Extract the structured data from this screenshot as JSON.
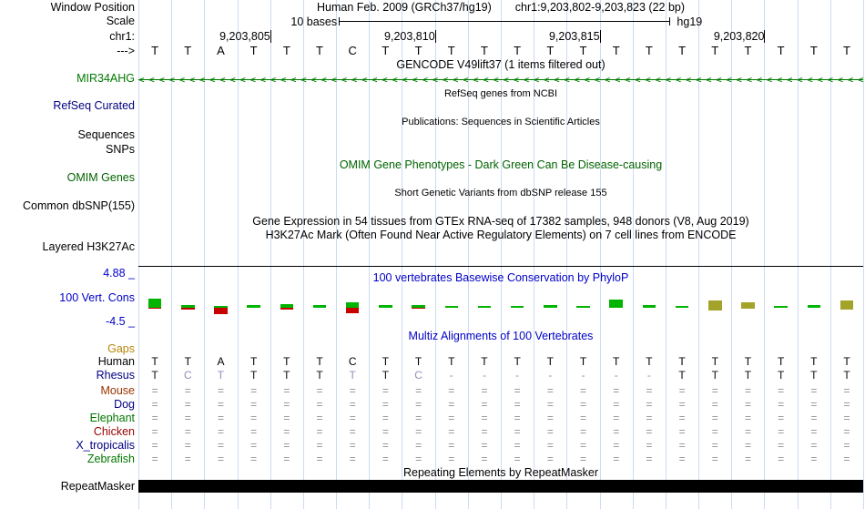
{
  "colors": {
    "guideline": "#ccdcf2",
    "gene_green": "#007700",
    "title_blue": "#0000c8",
    "navy": "#000082",
    "omim_green": "#006400",
    "gaps_orange": "#b8860b",
    "mouse_brown": "#993300",
    "chicken_red": "#960000",
    "dim_base": "#9090bb",
    "equals_gray": "#8f8f8f",
    "cons_green": "#00b400",
    "cons_red": "#c80000",
    "cons_olive": "#a3a329",
    "repeat_black": "#000000"
  },
  "header": {
    "left_label": "Window Position",
    "assembly": "Human Feb. 2009 (GRCh37/hg19)",
    "position": "chr1:9,203,802-9,203,823 (22 bp)"
  },
  "scale": {
    "left_label": "Scale",
    "bases_label": "10 bases",
    "genome": "hg19"
  },
  "ruler": {
    "left_label": "chr1:",
    "ticks": [
      {
        "label": "9,203,805",
        "pct": 18.18
      },
      {
        "label": "9,203,810",
        "pct": 40.91
      },
      {
        "label": "9,203,815",
        "pct": 63.64
      },
      {
        "label": "9,203,820",
        "pct": 86.36
      }
    ]
  },
  "sequence": {
    "left_label": "--->",
    "bases": [
      "T",
      "T",
      "A",
      "T",
      "T",
      "T",
      "C",
      "T",
      "T",
      "T",
      "T",
      "T",
      "T",
      "T",
      "T",
      "T",
      "T",
      "T",
      "T",
      "T",
      "T",
      "T"
    ]
  },
  "tracks": {
    "gencode": {
      "title": "GENCODE V49lift37 (1 items filtered out)",
      "gene_label": "MIR34AHG",
      "strand_arrow": "<"
    },
    "refseq": {
      "title": "RefSeq genes from NCBI",
      "left_label": "RefSeq Curated"
    },
    "publications": {
      "title": "Publications: Sequences in Scientific Articles",
      "left_label": "Sequences"
    },
    "snps": {
      "left_label": "SNPs"
    },
    "omim": {
      "title": "OMIM Gene Phenotypes - Dark Green Can Be Disease-causing",
      "left_label": "OMIM Genes"
    },
    "dbsnp": {
      "title": "Short Genetic Variants from dbSNP release 155",
      "left_label": "Common dbSNP(155)"
    },
    "gtex": {
      "title": "Gene Expression in 54 tissues from GTEx RNA-seq of 17382 samples, 948 donors (V8, Aug 2019)"
    },
    "h3k27ac": {
      "title": "H3K27Ac Mark (Often Found Near Active Regulatory Elements) on 7 cell lines from ENCODE",
      "left_label": "Layered H3K27Ac"
    },
    "conservation": {
      "title": "100 vertebrates Basewise Conservation by PhyloP",
      "left_label": "100 Vert. Cons",
      "axis_max": "4.88 _",
      "axis_min": "-4.5 _",
      "bars": [
        {
          "u": 10,
          "d": 1,
          "c": "g"
        },
        {
          "u": 3,
          "d": 2,
          "c": "g"
        },
        {
          "u": 2,
          "d": 7,
          "c": "g"
        },
        {
          "u": 3,
          "d": 0,
          "c": "g"
        },
        {
          "u": 4,
          "d": 2,
          "c": "g"
        },
        {
          "u": 3,
          "d": 0,
          "c": "g"
        },
        {
          "u": 6,
          "d": 6,
          "c": "g"
        },
        {
          "u": 3,
          "d": 0,
          "c": "g"
        },
        {
          "u": 3,
          "d": 1,
          "c": "g"
        },
        {
          "u": 2,
          "d": 0,
          "c": "g"
        },
        {
          "u": 2,
          "d": 0,
          "c": "g"
        },
        {
          "u": 2,
          "d": 0,
          "c": "g"
        },
        {
          "u": 3,
          "d": 0,
          "c": "g"
        },
        {
          "u": 2,
          "d": 0,
          "c": "g"
        },
        {
          "u": 9,
          "d": 0,
          "c": "g"
        },
        {
          "u": 3,
          "d": 0,
          "c": "g"
        },
        {
          "u": 2,
          "d": 0,
          "c": "g"
        },
        {
          "u": 8,
          "d": 3,
          "c": "o"
        },
        {
          "u": 6,
          "d": 1,
          "c": "o"
        },
        {
          "u": 2,
          "d": 0,
          "c": "g"
        },
        {
          "u": 3,
          "d": 0,
          "c": "g"
        },
        {
          "u": 8,
          "d": 2,
          "c": "o"
        }
      ]
    },
    "multiz": {
      "title": "Multiz Alignments of 100 Vertebrates",
      "gaps_label": "Gaps",
      "rows": [
        {
          "name": "Human",
          "label_color": "#000000",
          "cell_color": "#000000",
          "cells": [
            "T",
            "T",
            "A",
            "T",
            "T",
            "T",
            "C",
            "T",
            "T",
            "T",
            "T",
            "T",
            "T",
            "T",
            "T",
            "T",
            "T",
            "T",
            "T",
            "T",
            "T",
            "T"
          ]
        },
        {
          "name": "Rhesus",
          "label_color": "#000082",
          "cell_color": "#101010",
          "cells": [
            "T",
            {
              "t": "C",
              "dim": 1
            },
            {
              "t": "T",
              "dim": 1
            },
            "T",
            "T",
            "T",
            {
              "t": "T",
              "dim": 1
            },
            "T",
            {
              "t": "C",
              "dim": 1
            },
            {
              "t": "-",
              "dim": 1
            },
            {
              "t": "-",
              "dim": 1
            },
            {
              "t": "-",
              "dim": 1
            },
            {
              "t": "-",
              "dim": 1
            },
            {
              "t": "-",
              "dim": 1
            },
            {
              "t": "-",
              "dim": 1
            },
            {
              "t": "-",
              "dim": 1
            },
            "T",
            "T",
            "T",
            "T",
            "T",
            "T"
          ]
        },
        {
          "name": "Mouse",
          "label_color": "#993300",
          "cell_color": "#8f8f8f",
          "cells": [
            "=",
            "=",
            "=",
            "=",
            "=",
            "=",
            "=",
            "=",
            "=",
            "=",
            "=",
            "=",
            "=",
            "=",
            "=",
            "=",
            "=",
            "=",
            "=",
            "=",
            "=",
            "="
          ]
        },
        {
          "name": "Dog",
          "label_color": "#000082",
          "cell_color": "#8f8f8f",
          "cells": [
            "=",
            "=",
            "=",
            "=",
            "=",
            "=",
            "=",
            "=",
            "=",
            "=",
            "=",
            "=",
            "=",
            "=",
            "=",
            "=",
            "=",
            "=",
            "=",
            "=",
            "=",
            "="
          ]
        },
        {
          "name": "Elephant",
          "label_color": "#007700",
          "cell_color": "#8f8f8f",
          "cells": [
            "=",
            "=",
            "=",
            "=",
            "=",
            "=",
            "=",
            "=",
            "=",
            "=",
            "=",
            "=",
            "=",
            "=",
            "=",
            "=",
            "=",
            "=",
            "=",
            "=",
            "=",
            "="
          ]
        },
        {
          "name": "Chicken",
          "label_color": "#960000",
          "cell_color": "#8f8f8f",
          "cells": [
            "=",
            "=",
            "=",
            "=",
            "=",
            "=",
            "=",
            "=",
            "=",
            "=",
            "=",
            "=",
            "=",
            "=",
            "=",
            "=",
            "=",
            "=",
            "=",
            "=",
            "=",
            "="
          ]
        },
        {
          "name": "X_tropicalis",
          "label_color": "#000082",
          "cell_color": "#8f8f8f",
          "cells": [
            "=",
            "=",
            "=",
            "=",
            "=",
            "=",
            "=",
            "=",
            "=",
            "=",
            "=",
            "=",
            "=",
            "=",
            "=",
            "=",
            "=",
            "=",
            "=",
            "=",
            "=",
            "="
          ]
        },
        {
          "name": "Zebrafish",
          "label_color": "#007700",
          "cell_color": "#8f8f8f",
          "cells": [
            "=",
            "=",
            "=",
            "=",
            "=",
            "=",
            "=",
            "=",
            "=",
            "=",
            "=",
            "=",
            "=",
            "=",
            "=",
            "=",
            "=",
            "=",
            "=",
            "=",
            "=",
            "="
          ]
        }
      ]
    },
    "repeatmasker": {
      "title": "Repeating Elements by RepeatMasker",
      "left_label": "RepeatMasker"
    }
  }
}
